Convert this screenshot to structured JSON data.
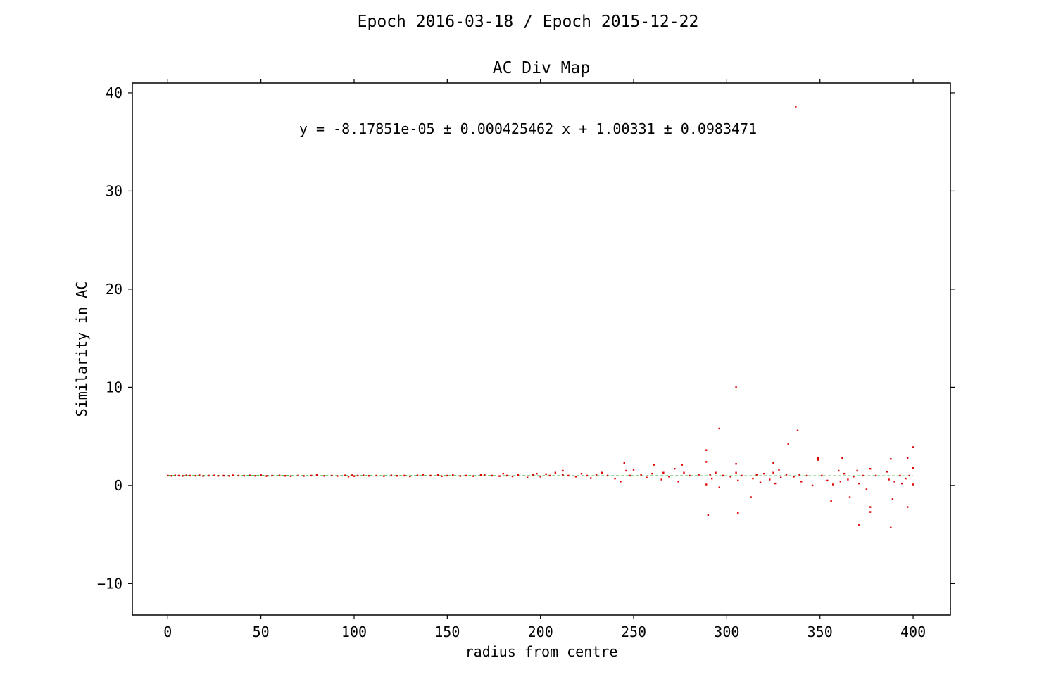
{
  "suptitle": "Epoch 2016-03-18 / Epoch 2015-12-22",
  "chart_data": {
    "type": "scatter",
    "title": "AC Div Map",
    "xlabel": "radius from centre",
    "ylabel": "Similarity in AC",
    "annotation": "y = -8.17851e-05 ± 0.000425462 x + 1.00331 ± 0.0983471",
    "xlim": [
      -19,
      420
    ],
    "ylim": [
      -13.2,
      41
    ],
    "xticks": [
      0,
      50,
      100,
      150,
      200,
      250,
      300,
      350,
      400
    ],
    "xtick_labels": [
      "0",
      "50",
      "100",
      "150",
      "200",
      "250",
      "300",
      "350",
      "400"
    ],
    "yticks": [
      -10,
      0,
      10,
      20,
      30,
      40
    ],
    "ytick_labels": [
      "−10",
      "0",
      "10",
      "20",
      "30",
      "40"
    ],
    "grid": false,
    "colors": {
      "points": "#dd0000",
      "fit": "#22aa22"
    },
    "fit": {
      "slope": -8.17851e-05,
      "intercept": 1.00331,
      "x_range": [
        0,
        400
      ]
    },
    "series": [
      {
        "points": [
          [
            0,
            1.0
          ],
          [
            2,
            0.98
          ],
          [
            4,
            1.02
          ],
          [
            6,
            1.0
          ],
          [
            8,
            0.97
          ],
          [
            10,
            1.03
          ],
          [
            12,
            1.0
          ],
          [
            15,
            0.99
          ],
          [
            17,
            1.04
          ],
          [
            19,
            0.96
          ],
          [
            22,
            1.0
          ],
          [
            25,
            1.02
          ],
          [
            27,
            0.98
          ],
          [
            30,
            1.0
          ],
          [
            33,
            0.97
          ],
          [
            35,
            1.03
          ],
          [
            38,
            1.0
          ],
          [
            41,
            0.99
          ],
          [
            44,
            1.02
          ],
          [
            47,
            0.98
          ],
          [
            50,
            1.05
          ],
          [
            53,
            0.96
          ],
          [
            56,
            1.0
          ],
          [
            60,
            1.02
          ],
          [
            63,
            0.98
          ],
          [
            66,
            0.95
          ],
          [
            70,
            1.01
          ],
          [
            73,
            0.97
          ],
          [
            77,
            1.0
          ],
          [
            80,
            1.05
          ],
          [
            84,
            0.97
          ],
          [
            88,
            1.0
          ],
          [
            91,
            0.96
          ],
          [
            95,
            1.02
          ],
          [
            97,
            0.9
          ],
          [
            99,
            1.04
          ],
          [
            100,
            0.95
          ],
          [
            102,
            1.0
          ],
          [
            105,
            1.03
          ],
          [
            108,
            0.98
          ],
          [
            112,
            1.0
          ],
          [
            116,
            0.95
          ],
          [
            120,
            1.02
          ],
          [
            123,
            0.98
          ],
          [
            127,
            1.0
          ],
          [
            130,
            0.92
          ],
          [
            134,
            1.02
          ],
          [
            137,
            1.1
          ],
          [
            141,
            1.0
          ],
          [
            145,
            1.05
          ],
          [
            147,
            0.94
          ],
          [
            150,
            1.0
          ],
          [
            153,
            1.08
          ],
          [
            157,
            0.96
          ],
          [
            160,
            1.0
          ],
          [
            164,
            0.95
          ],
          [
            168,
            1.05
          ],
          [
            170,
            1.1
          ],
          [
            174,
            1.0
          ],
          [
            178,
            0.95
          ],
          [
            180,
            1.2
          ],
          [
            182,
            1.0
          ],
          [
            185,
            0.92
          ],
          [
            188,
            1.05
          ],
          [
            193,
            0.8
          ],
          [
            196,
            1.1
          ],
          [
            198,
            1.2
          ],
          [
            200,
            0.9
          ],
          [
            203,
            1.15
          ],
          [
            205,
            1.0
          ],
          [
            208,
            1.3
          ],
          [
            212,
            1.5
          ],
          [
            212,
            1.1
          ],
          [
            215,
            1.0
          ],
          [
            219,
            0.9
          ],
          [
            222,
            1.2
          ],
          [
            225,
            1.0
          ],
          [
            227,
            0.75
          ],
          [
            230,
            1.1
          ],
          [
            233,
            1.3
          ],
          [
            236,
            1.0
          ],
          [
            240,
            0.7
          ],
          [
            243,
            0.4
          ],
          [
            245,
            2.3
          ],
          [
            246,
            1.5
          ],
          [
            248,
            1.0
          ],
          [
            250,
            1.6
          ],
          [
            254,
            1.1
          ],
          [
            257,
            0.8
          ],
          [
            260,
            1.2
          ],
          [
            261,
            2.1
          ],
          [
            265,
            0.6
          ],
          [
            266,
            1.3
          ],
          [
            269,
            0.9
          ],
          [
            272,
            1.7
          ],
          [
            274,
            0.4
          ],
          [
            276,
            2.1
          ],
          [
            277,
            1.3
          ],
          [
            280,
            1.0
          ],
          [
            285,
            1.1
          ],
          [
            289,
            3.6
          ],
          [
            289,
            2.4
          ],
          [
            289,
            0.1
          ],
          [
            290,
            -3.0
          ],
          [
            291,
            1.1
          ],
          [
            292,
            0.7
          ],
          [
            294,
            1.3
          ],
          [
            296,
            5.8
          ],
          [
            296,
            -0.2
          ],
          [
            298,
            1.0
          ],
          [
            302,
            0.9
          ],
          [
            305,
            10.0
          ],
          [
            305,
            2.2
          ],
          [
            305,
            1.3
          ],
          [
            306,
            0.5
          ],
          [
            306,
            -2.8
          ],
          [
            308,
            1.0
          ],
          [
            313,
            -1.2
          ],
          [
            314,
            0.7
          ],
          [
            316,
            1.1
          ],
          [
            318,
            0.3
          ],
          [
            320,
            1.2
          ],
          [
            323,
            0.6
          ],
          [
            325,
            2.3
          ],
          [
            325,
            1.3
          ],
          [
            326,
            0.2
          ],
          [
            328,
            1.6
          ],
          [
            329,
            0.8
          ],
          [
            332,
            1.1
          ],
          [
            333,
            4.2
          ],
          [
            336,
            0.9
          ],
          [
            337,
            38.6
          ],
          [
            338,
            5.6
          ],
          [
            339,
            1.1
          ],
          [
            340,
            0.4
          ],
          [
            343,
            1.0
          ],
          [
            346,
            0.0
          ],
          [
            349,
            2.8
          ],
          [
            349,
            2.6
          ],
          [
            351,
            1.0
          ],
          [
            354,
            0.5
          ],
          [
            356,
            -1.6
          ],
          [
            357,
            0.1
          ],
          [
            360,
            1.5
          ],
          [
            361,
            0.4
          ],
          [
            362,
            2.8
          ],
          [
            363,
            1.2
          ],
          [
            365,
            0.6
          ],
          [
            366,
            -1.2
          ],
          [
            368,
            0.9
          ],
          [
            370,
            1.5
          ],
          [
            371,
            -4.0
          ],
          [
            371,
            0.2
          ],
          [
            373,
            1.0
          ],
          [
            375,
            -0.4
          ],
          [
            377,
            1.7
          ],
          [
            377,
            -2.2
          ],
          [
            377,
            -2.7
          ],
          [
            380,
            1.0
          ],
          [
            386,
            1.4
          ],
          [
            387,
            0.6
          ],
          [
            388,
            2.7
          ],
          [
            388,
            -4.3
          ],
          [
            389,
            -1.4
          ],
          [
            390,
            0.4
          ],
          [
            393,
            1.0
          ],
          [
            394,
            0.2
          ],
          [
            396,
            0.7
          ],
          [
            397,
            2.8
          ],
          [
            397,
            -2.2
          ],
          [
            398,
            1.0
          ],
          [
            400,
            3.9
          ],
          [
            400,
            1.8
          ],
          [
            400,
            0.1
          ]
        ]
      }
    ]
  }
}
